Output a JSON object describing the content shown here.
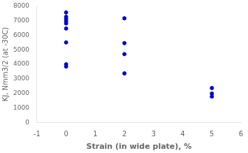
{
  "chart_data": {
    "type": "scatter",
    "x": [
      0,
      0,
      0,
      0,
      0,
      0,
      0,
      0,
      0,
      2,
      2,
      2,
      2,
      5,
      5,
      5
    ],
    "y": [
      7550,
      7250,
      7100,
      6950,
      6800,
      6450,
      5500,
      4000,
      3850,
      7150,
      5450,
      4700,
      3380,
      2380,
      2000,
      1800
    ],
    "color": "#0000cc",
    "xlabel": "Strain (in wide plate), %",
    "ylabel": "KJ, Nmm3/2 (at -30C)",
    "xlim": [
      -1,
      6
    ],
    "ylim": [
      0,
      8000
    ],
    "xticks": [
      -1,
      0,
      1,
      2,
      3,
      4,
      5,
      6
    ],
    "yticks": [
      0,
      1000,
      2000,
      3000,
      4000,
      5000,
      6000,
      7000,
      8000
    ],
    "grid": false
  }
}
